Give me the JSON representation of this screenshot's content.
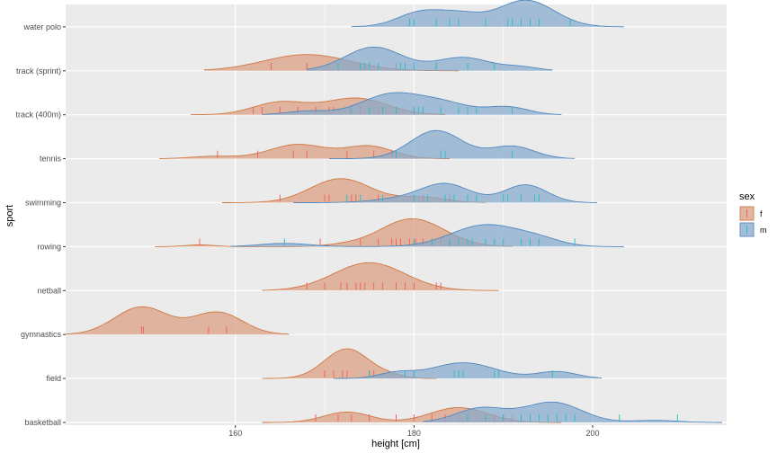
{
  "chart_data": {
    "type": "ridgeline",
    "xlabel": "height [cm]",
    "ylabel": "sport",
    "xlim": [
      141,
      215
    ],
    "x_ticks": [
      "160",
      "180",
      "200"
    ],
    "x_tick_values": [
      160,
      180,
      200
    ],
    "categories": [
      "basketball",
      "field",
      "gymnastics",
      "netball",
      "rowing",
      "swimming",
      "tennis",
      "track (400m)",
      "track (sprint)",
      "water polo"
    ],
    "legend": {
      "title": "sex",
      "position": "right"
    },
    "series": [
      {
        "name": "f",
        "fill": "#d99d7f",
        "line": "#d2773f",
        "tick": "#f0675f",
        "data": {
          "basketball": {
            "range": [
              163,
              196.5
            ],
            "peaks": [
              [
                172.5,
                2.6,
                0.35
              ],
              [
                185,
                3.2,
                0.5
              ]
            ],
            "ticks": [
              169,
              171.5,
              173,
              175,
              178,
              180,
              182,
              183.5,
              185,
              186,
              188,
              189,
              190,
              191
            ]
          },
          "field": {
            "range": [
              163,
              182.5
            ],
            "peaks": [
              [
                172.5,
                2.5,
                1.0
              ],
              [
                177.5,
                1.5,
                0.08
              ]
            ],
            "ticks": [
              170,
              171,
              172,
              172.5,
              175,
              175.5,
              180
            ]
          },
          "gymnastics": {
            "range": [
              141,
              166
            ],
            "peaks": [
              [
                149.5,
                3.0,
                0.93
              ],
              [
                158,
                2.8,
                0.75
              ]
            ],
            "ticks": [
              149.5,
              149.7,
              157,
              159
            ]
          },
          "netball": {
            "range": [
              163,
              189.5
            ],
            "peaks": [
              [
                175,
                4.0,
                0.94
              ]
            ],
            "ticks": [
              168,
              170,
              171.8,
              172.5,
              173.5,
              174,
              174.5,
              175.5,
              176.5,
              178,
              179,
              180,
              182.5,
              183
            ]
          },
          "rowing": {
            "range": [
              151,
              191
            ],
            "peaks": [
              [
                156,
                1.6,
                0.06
              ],
              [
                179.8,
                3.6,
                0.94
              ],
              [
                172,
                2.0,
                0.05
              ]
            ],
            "ticks": [
              156,
              169.5,
              174,
              176,
              177.5,
              178,
              178.5,
              179.5,
              180,
              180.2,
              181,
              182,
              183,
              184
            ]
          },
          "swimming": {
            "range": [
              158.5,
              188
            ],
            "peaks": [
              [
                171.8,
                3.4,
                0.81
              ],
              [
                181,
                2.6,
                0.18
              ]
            ],
            "ticks": [
              165,
              170,
              170.5,
              173,
              173.5,
              176,
              180,
              181,
              184
            ]
          },
          "tennis": {
            "range": [
              151.5,
              184
            ],
            "peaks": [
              [
                157.5,
                2.5,
                0.08
              ],
              [
                167,
                3.2,
                0.48
              ],
              [
                175,
                2.7,
                0.42
              ]
            ],
            "ticks": [
              158,
              162.5,
              166.5,
              168,
              172.5,
              175.5,
              177.5,
              178,
              183
            ]
          },
          "track (400m)": {
            "range": [
              155,
              183.5
            ],
            "peaks": [
              [
                165,
                3.0,
                0.42
              ],
              [
                173.5,
                3.5,
                0.56
              ]
            ],
            "ticks": [
              162,
              163,
              165,
              167,
              169,
              170.5,
              171,
              172.8,
              174,
              176,
              178,
              180,
              181
            ]
          },
          "track (sprint)": {
            "range": [
              156.5,
              185
            ],
            "peaks": [
              [
                168,
                4.8,
                0.55
              ]
            ],
            "ticks": [
              164,
              168,
              171.5,
              175,
              178,
              182.5
            ]
          }
        }
      },
      {
        "name": "m",
        "fill": "#86a9cd",
        "line": "#4f88c0",
        "tick": "#2fbfc3",
        "data": {
          "basketball": {
            "range": [
              181,
              214.5
            ],
            "peaks": [
              [
                187.5,
                2.8,
                0.48
              ],
              [
                195.5,
                3.2,
                0.68
              ],
              [
                207,
                2.5,
                0.07
              ]
            ],
            "ticks": [
              186,
              188,
              190,
              192,
              193,
              194,
              195,
              196,
              197,
              198,
              203,
              209.5
            ]
          },
          "field": {
            "range": [
              171,
              201
            ],
            "peaks": [
              [
                178,
                2.0,
                0.18
              ],
              [
                185.5,
                3.6,
                0.53
              ],
              [
                196,
                2.2,
                0.23
              ]
            ],
            "ticks": [
              175,
              179,
              180,
              184.5,
              185,
              185.5,
              189,
              189.5,
              195.5
            ]
          },
          "rowing": {
            "range": [
              159.5,
              203.5
            ],
            "peaks": [
              [
                165.5,
                2.8,
                0.11
              ],
              [
                188,
                3.8,
                0.73
              ],
              [
                194,
                2.6,
                0.2
              ]
            ],
            "ticks": [
              165.5,
              180,
              182,
              184,
              185,
              186,
              186.5,
              188,
              189,
              190,
              192,
              193,
              194,
              198
            ]
          },
          "swimming": {
            "range": [
              166.5,
              200.5
            ],
            "peaks": [
              [
                178,
                3.0,
                0.11
              ],
              [
                183.5,
                2.8,
                0.63
              ],
              [
                192.5,
                2.4,
                0.6
              ]
            ],
            "ticks": [
              172.5,
              174,
              176.5,
              180,
              181.5,
              183.5,
              184.5,
              186,
              187,
              190,
              190.5,
              192,
              193.5,
              194
            ]
          },
          "tennis": {
            "range": [
              170.5,
              198
            ],
            "peaks": [
              [
                182.5,
                2.9,
                0.95
              ],
              [
                191,
                2.5,
                0.42
              ]
            ],
            "ticks": [
              178,
              183,
              183.5,
              191
            ]
          },
          "track (400m)": {
            "range": [
              163,
              196.5
            ],
            "peaks": [
              [
                168,
                2.3,
                0.12
              ],
              [
                177.5,
                3.4,
                0.69
              ],
              [
                183.5,
                3.0,
                0.35
              ],
              [
                190.5,
                2.3,
                0.26
              ]
            ],
            "ticks": [
              173,
              175,
              176.5,
              178,
              180,
              180.5,
              181,
              183,
              185,
              186,
              187,
              191
            ]
          },
          "track (sprint)": {
            "range": [
              168,
              195.5
            ],
            "peaks": [
              [
                175.5,
                3.2,
                0.8
              ],
              [
                185.5,
                3.0,
                0.45
              ],
              [
                192,
                2.0,
                0.12
              ]
            ],
            "ticks": [
              171.5,
              174,
              174.5,
              175,
              176,
              178.5,
              179,
              180,
              182.5,
              186,
              189
            ]
          },
          "water polo": {
            "range": [
              173,
              203.5
            ],
            "peaks": [
              [
                181,
                2.7,
                0.52
              ],
              [
                185.5,
                2.2,
                0.32
              ],
              [
                192.5,
                3.2,
                0.9
              ]
            ],
            "ticks": [
              179.5,
              180,
              182.5,
              184,
              185,
              188,
              190.5,
              191,
              192,
              193,
              194,
              197.5
            ]
          }
        }
      }
    ],
    "grid": true,
    "colors": {
      "panel": "#ebebeb",
      "gridline": "#ffffff"
    }
  }
}
